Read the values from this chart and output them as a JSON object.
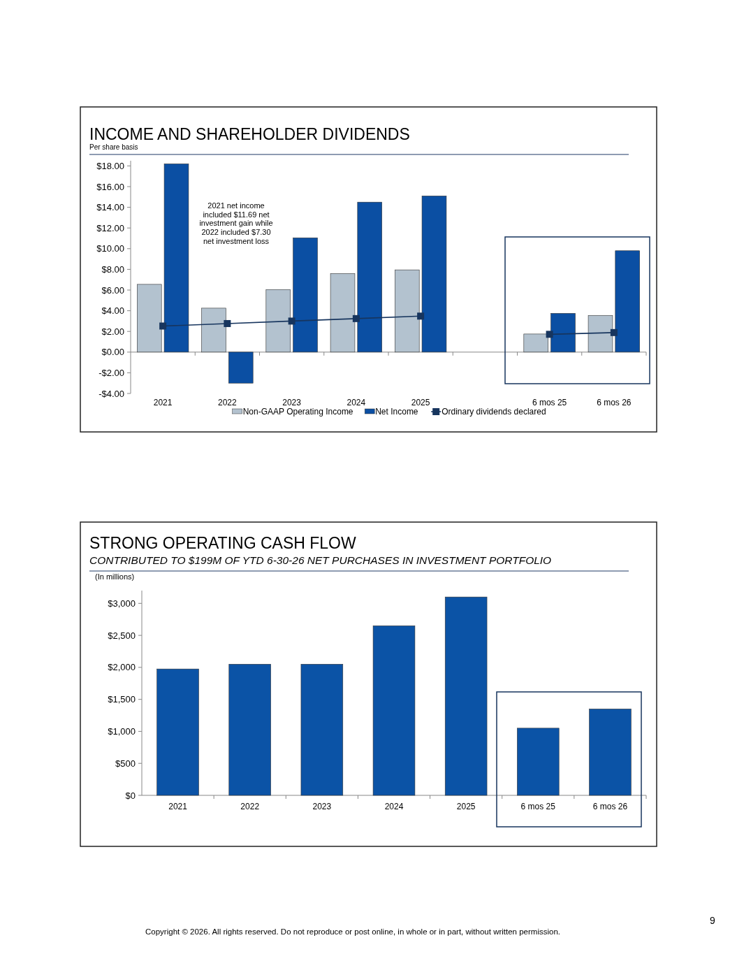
{
  "chart_data": [
    {
      "type": "bar",
      "title": "INCOME AND SHAREHOLDER DIVIDENDS",
      "subtitle": "Per share basis",
      "categories": [
        "2021",
        "2022",
        "2023",
        "2024",
        "2025",
        null,
        "6 mos 25",
        "6 mos 26"
      ],
      "series": [
        {
          "name": "Non-GAAP Operating Income",
          "color": "#b3c2cf",
          "values": [
            6.55,
            4.25,
            6.05,
            7.6,
            7.95,
            null,
            1.75,
            3.55
          ]
        },
        {
          "name": "Net Income",
          "color": "#0b4fa3",
          "values": [
            18.2,
            -3.0,
            11.05,
            14.5,
            15.1,
            null,
            3.75,
            9.8
          ]
        },
        {
          "name": "Ordinary dividends declared",
          "type": "line",
          "color": "#17355e",
          "values": [
            2.52,
            2.76,
            3.0,
            3.24,
            3.48,
            null,
            1.72,
            1.89
          ]
        }
      ],
      "ylim": [
        -4,
        18.5
      ],
      "yticks": [
        {
          "value": -4,
          "label": "-$4.00"
        },
        {
          "value": -2,
          "label": "-$2.00"
        },
        {
          "value": 0,
          "label": "$0.00"
        },
        {
          "value": 2,
          "label": "$2.00"
        },
        {
          "value": 4,
          "label": "$4.00"
        },
        {
          "value": 6,
          "label": "$6.00"
        },
        {
          "value": 8,
          "label": "$8.00"
        },
        {
          "value": 10,
          "label": "$10.00"
        },
        {
          "value": 12,
          "label": "$12.00"
        },
        {
          "value": 14,
          "label": "$14.00"
        },
        {
          "value": 16,
          "label": "$16.00"
        },
        {
          "value": 18,
          "label": "$18.00"
        }
      ],
      "annotations": [
        "2021 net income included $11.69 net investment gain while 2022 included $7.30 net investment loss"
      ],
      "legend": "bottom",
      "marker": "square"
    },
    {
      "type": "bar",
      "title": "STRONG OPERATING CASH FLOW",
      "subtitle": "CONTRIBUTED TO $199M OF YTD 6-30-26 NET PURCHASES IN INVESTMENT PORTFOLIO",
      "ylabel": "(In millions)",
      "categories": [
        "2021",
        "2022",
        "2023",
        "2024",
        "2025",
        "6 mos 25",
        "6 mos 26"
      ],
      "values": [
        1975,
        2050,
        2050,
        2650,
        3100,
        1050,
        1350
      ],
      "color": "#0b53a6",
      "ylim": [
        0,
        3200
      ],
      "yticks": [
        {
          "value": 0,
          "label": "$0"
        },
        {
          "value": 500,
          "label": "$500"
        },
        {
          "value": 1000,
          "label": "$1,000"
        },
        {
          "value": 1500,
          "label": "$1,500"
        },
        {
          "value": 2000,
          "label": "$2,000"
        },
        {
          "value": 2500,
          "label": "$2,500"
        },
        {
          "value": 3000,
          "label": "$3,000"
        }
      ],
      "annotations": [
        "Copyright © 2026. All rights reserved. Do not reproduce or post online, in whole or in part, without written permission.",
        "9"
      ]
    }
  ]
}
